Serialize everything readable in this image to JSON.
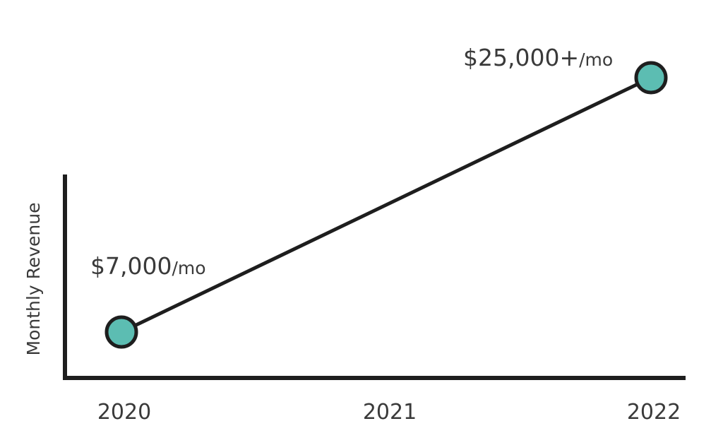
{
  "chart_data": {
    "type": "line",
    "title": "",
    "xlabel": "",
    "ylabel": "Monthly Revenue",
    "x": [
      "2020",
      "2021",
      "2022"
    ],
    "series": [
      {
        "values": [
          7000,
          null,
          25000
        ]
      }
    ],
    "data_labels": [
      {
        "x": "2020",
        "value": "$7,000",
        "unit": "/mo"
      },
      {
        "x": "2022",
        "value": "$25,000+",
        "unit": "/mo"
      }
    ],
    "ylim": [
      2000,
      32000
    ],
    "grid": false,
    "legend": "none",
    "colors": {
      "point_fill": "#5cbdb2",
      "line": "#1e1e1e",
      "axis": "#1e1e1e",
      "text": "#3a3a3a"
    }
  }
}
